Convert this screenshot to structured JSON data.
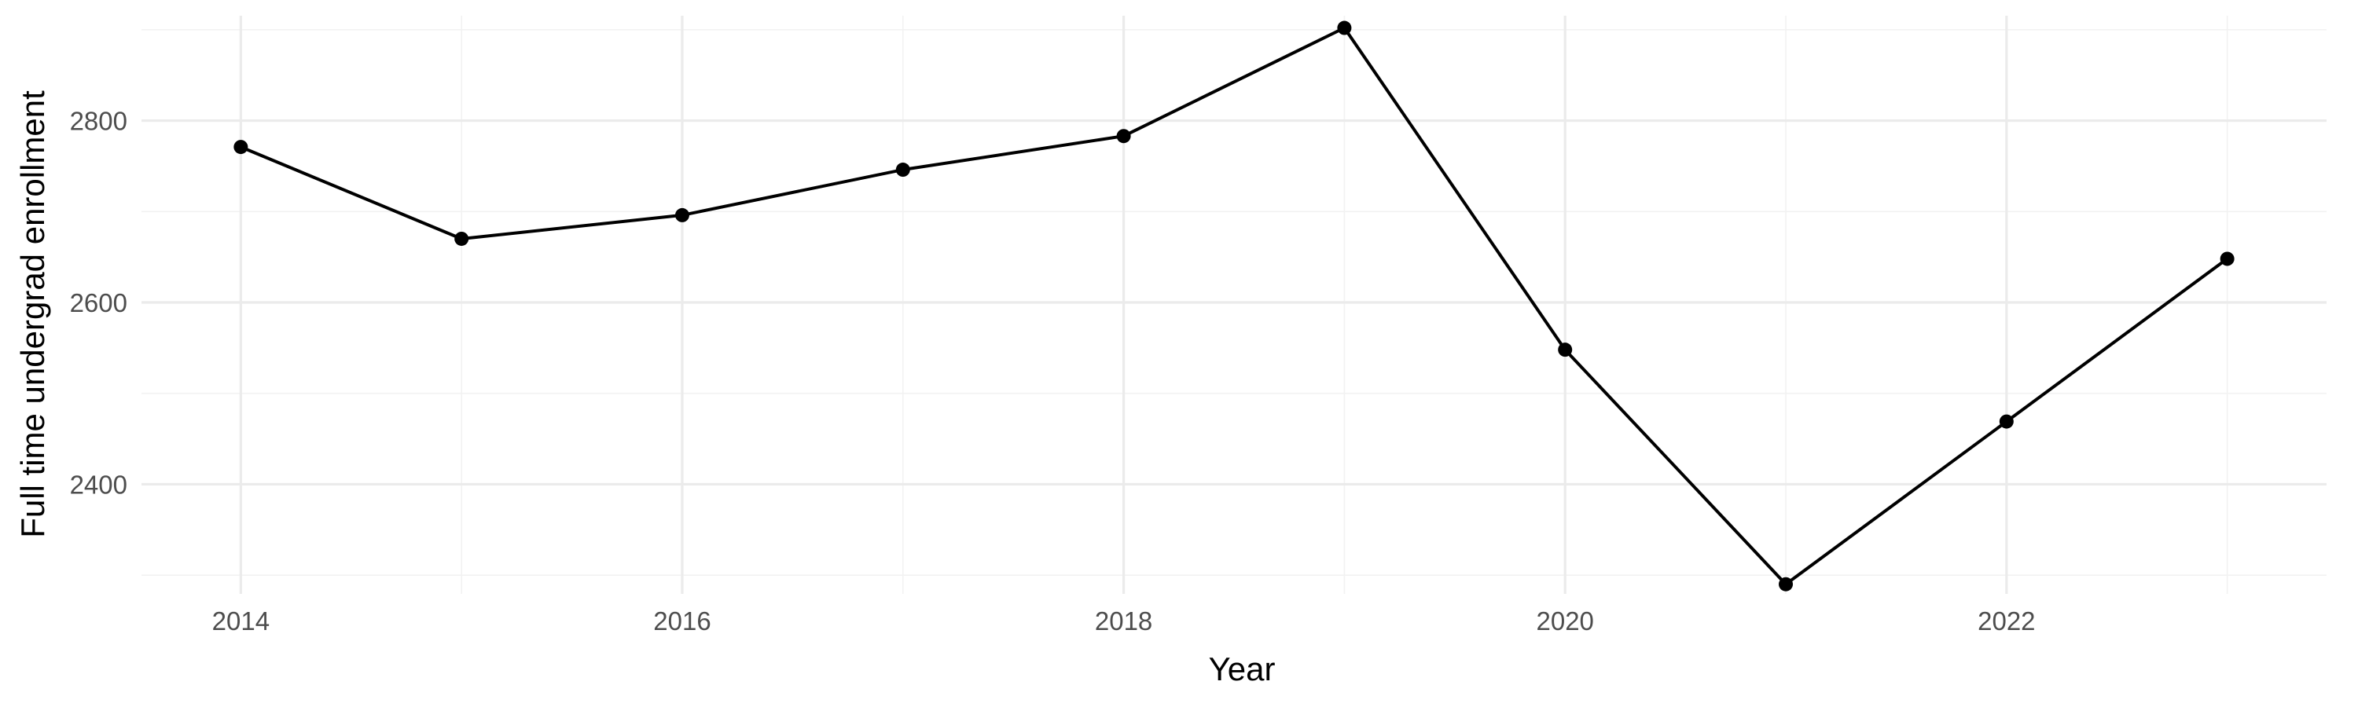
{
  "chart_data": {
    "type": "line",
    "title": "",
    "xlabel": "Year",
    "ylabel": "Full time undergrad enrollment",
    "x": [
      2014,
      2015,
      2016,
      2017,
      2018,
      2019,
      2020,
      2021,
      2022,
      2023
    ],
    "series": [
      {
        "values": [
          2771,
          2670,
          2696,
          2746,
          2783,
          2902,
          2548,
          2290,
          2469,
          2648
        ],
        "color": "#000000"
      }
    ],
    "xlim": [
      2013.55,
      2023.45
    ],
    "ylim": [
      2279.4,
      2915.4
    ],
    "x_ticks": [
      2014,
      2016,
      2018,
      2020,
      2022
    ],
    "x_tick_labels": [
      "2014",
      "2016",
      "2018",
      "2020",
      "2022"
    ],
    "y_ticks": [
      2400,
      2600,
      2800
    ],
    "y_tick_labels": [
      "2400",
      "2600",
      "2800"
    ],
    "x_minor_ticks": [
      2015,
      2017,
      2019,
      2021,
      2023
    ],
    "y_minor_ticks": [
      2300,
      2500,
      2700,
      2900
    ],
    "grid": true,
    "legend": "none"
  }
}
